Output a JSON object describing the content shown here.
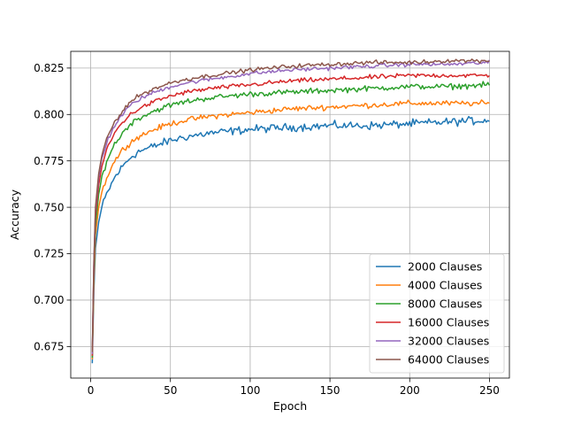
{
  "chart_data": {
    "type": "line",
    "title": "",
    "xlabel": "Epoch",
    "ylabel": "Accuracy",
    "xlim": [
      -12.5,
      262.5
    ],
    "ylim": [
      0.658,
      0.834
    ],
    "xticks": [
      0,
      50,
      100,
      150,
      200,
      250
    ],
    "xtick_labels": [
      "0",
      "50",
      "100",
      "150",
      "200",
      "250"
    ],
    "yticks": [
      0.675,
      0.7,
      0.725,
      0.75,
      0.775,
      0.8,
      0.825
    ],
    "ytick_labels": [
      "0.675",
      "0.700",
      "0.725",
      "0.750",
      "0.775",
      "0.800",
      "0.825"
    ],
    "grid": true,
    "legend_position": "lower-right",
    "x_start": 1,
    "x_end": 250,
    "series": [
      {
        "name": "2000 Clauses",
        "color": "#1f77b4",
        "points": [
          [
            1,
            0.666
          ],
          [
            2,
            0.705
          ],
          [
            3,
            0.728
          ],
          [
            5,
            0.742
          ],
          [
            7,
            0.75
          ],
          [
            10,
            0.757
          ],
          [
            15,
            0.766
          ],
          [
            20,
            0.772
          ],
          [
            25,
            0.777
          ],
          [
            30,
            0.78
          ],
          [
            40,
            0.783
          ],
          [
            50,
            0.786
          ],
          [
            60,
            0.788
          ],
          [
            75,
            0.79
          ],
          [
            100,
            0.792
          ],
          [
            125,
            0.793
          ],
          [
            150,
            0.794
          ],
          [
            175,
            0.794
          ],
          [
            200,
            0.795
          ],
          [
            225,
            0.796
          ],
          [
            250,
            0.797
          ]
        ],
        "noise": 0.0032
      },
      {
        "name": "4000 Clauses",
        "color": "#ff7f0e",
        "points": [
          [
            1,
            0.668
          ],
          [
            2,
            0.71
          ],
          [
            3,
            0.735
          ],
          [
            5,
            0.75
          ],
          [
            7,
            0.758
          ],
          [
            10,
            0.766
          ],
          [
            15,
            0.775
          ],
          [
            20,
            0.781
          ],
          [
            25,
            0.785
          ],
          [
            30,
            0.788
          ],
          [
            40,
            0.792
          ],
          [
            50,
            0.795
          ],
          [
            60,
            0.797
          ],
          [
            75,
            0.799
          ],
          [
            100,
            0.801
          ],
          [
            125,
            0.803
          ],
          [
            150,
            0.804
          ],
          [
            175,
            0.805
          ],
          [
            200,
            0.806
          ],
          [
            225,
            0.806
          ],
          [
            250,
            0.806
          ]
        ],
        "noise": 0.0022
      },
      {
        "name": "8000 Clauses",
        "color": "#2ca02c",
        "points": [
          [
            1,
            0.669
          ],
          [
            2,
            0.715
          ],
          [
            3,
            0.74
          ],
          [
            5,
            0.757
          ],
          [
            7,
            0.766
          ],
          [
            10,
            0.775
          ],
          [
            15,
            0.784
          ],
          [
            20,
            0.79
          ],
          [
            25,
            0.795
          ],
          [
            30,
            0.798
          ],
          [
            40,
            0.802
          ],
          [
            50,
            0.805
          ],
          [
            60,
            0.807
          ],
          [
            75,
            0.809
          ],
          [
            100,
            0.811
          ],
          [
            125,
            0.812
          ],
          [
            150,
            0.813
          ],
          [
            175,
            0.814
          ],
          [
            200,
            0.815
          ],
          [
            225,
            0.815
          ],
          [
            250,
            0.816
          ]
        ],
        "noise": 0.0022
      },
      {
        "name": "16000 Clauses",
        "color": "#d62728",
        "points": [
          [
            1,
            0.67
          ],
          [
            2,
            0.718
          ],
          [
            3,
            0.745
          ],
          [
            5,
            0.762
          ],
          [
            7,
            0.772
          ],
          [
            10,
            0.781
          ],
          [
            15,
            0.79
          ],
          [
            20,
            0.796
          ],
          [
            25,
            0.8
          ],
          [
            30,
            0.803
          ],
          [
            40,
            0.807
          ],
          [
            50,
            0.81
          ],
          [
            60,
            0.812
          ],
          [
            75,
            0.814
          ],
          [
            100,
            0.816
          ],
          [
            125,
            0.818
          ],
          [
            150,
            0.819
          ],
          [
            175,
            0.82
          ],
          [
            200,
            0.821
          ],
          [
            225,
            0.821
          ],
          [
            250,
            0.821
          ]
        ],
        "noise": 0.0018
      },
      {
        "name": "32000 Clauses",
        "color": "#9467bd",
        "points": [
          [
            1,
            0.671
          ],
          [
            2,
            0.72
          ],
          [
            3,
            0.748
          ],
          [
            5,
            0.766
          ],
          [
            7,
            0.776
          ],
          [
            10,
            0.785
          ],
          [
            15,
            0.794
          ],
          [
            20,
            0.8
          ],
          [
            25,
            0.805
          ],
          [
            30,
            0.808
          ],
          [
            40,
            0.812
          ],
          [
            50,
            0.815
          ],
          [
            60,
            0.817
          ],
          [
            75,
            0.819
          ],
          [
            100,
            0.822
          ],
          [
            125,
            0.824
          ],
          [
            150,
            0.825
          ],
          [
            175,
            0.826
          ],
          [
            200,
            0.827
          ],
          [
            225,
            0.827
          ],
          [
            250,
            0.828
          ]
        ],
        "noise": 0.0016
      },
      {
        "name": "64000 Clauses",
        "color": "#8c564b",
        "points": [
          [
            1,
            0.672
          ],
          [
            2,
            0.721
          ],
          [
            3,
            0.75
          ],
          [
            5,
            0.768
          ],
          [
            7,
            0.778
          ],
          [
            10,
            0.787
          ],
          [
            15,
            0.796
          ],
          [
            20,
            0.802
          ],
          [
            25,
            0.807
          ],
          [
            30,
            0.81
          ],
          [
            40,
            0.814
          ],
          [
            50,
            0.817
          ],
          [
            60,
            0.819
          ],
          [
            75,
            0.821
          ],
          [
            100,
            0.824
          ],
          [
            125,
            0.826
          ],
          [
            150,
            0.827
          ],
          [
            175,
            0.828
          ],
          [
            200,
            0.828
          ],
          [
            225,
            0.829
          ],
          [
            250,
            0.829
          ]
        ],
        "noise": 0.0016
      }
    ]
  }
}
